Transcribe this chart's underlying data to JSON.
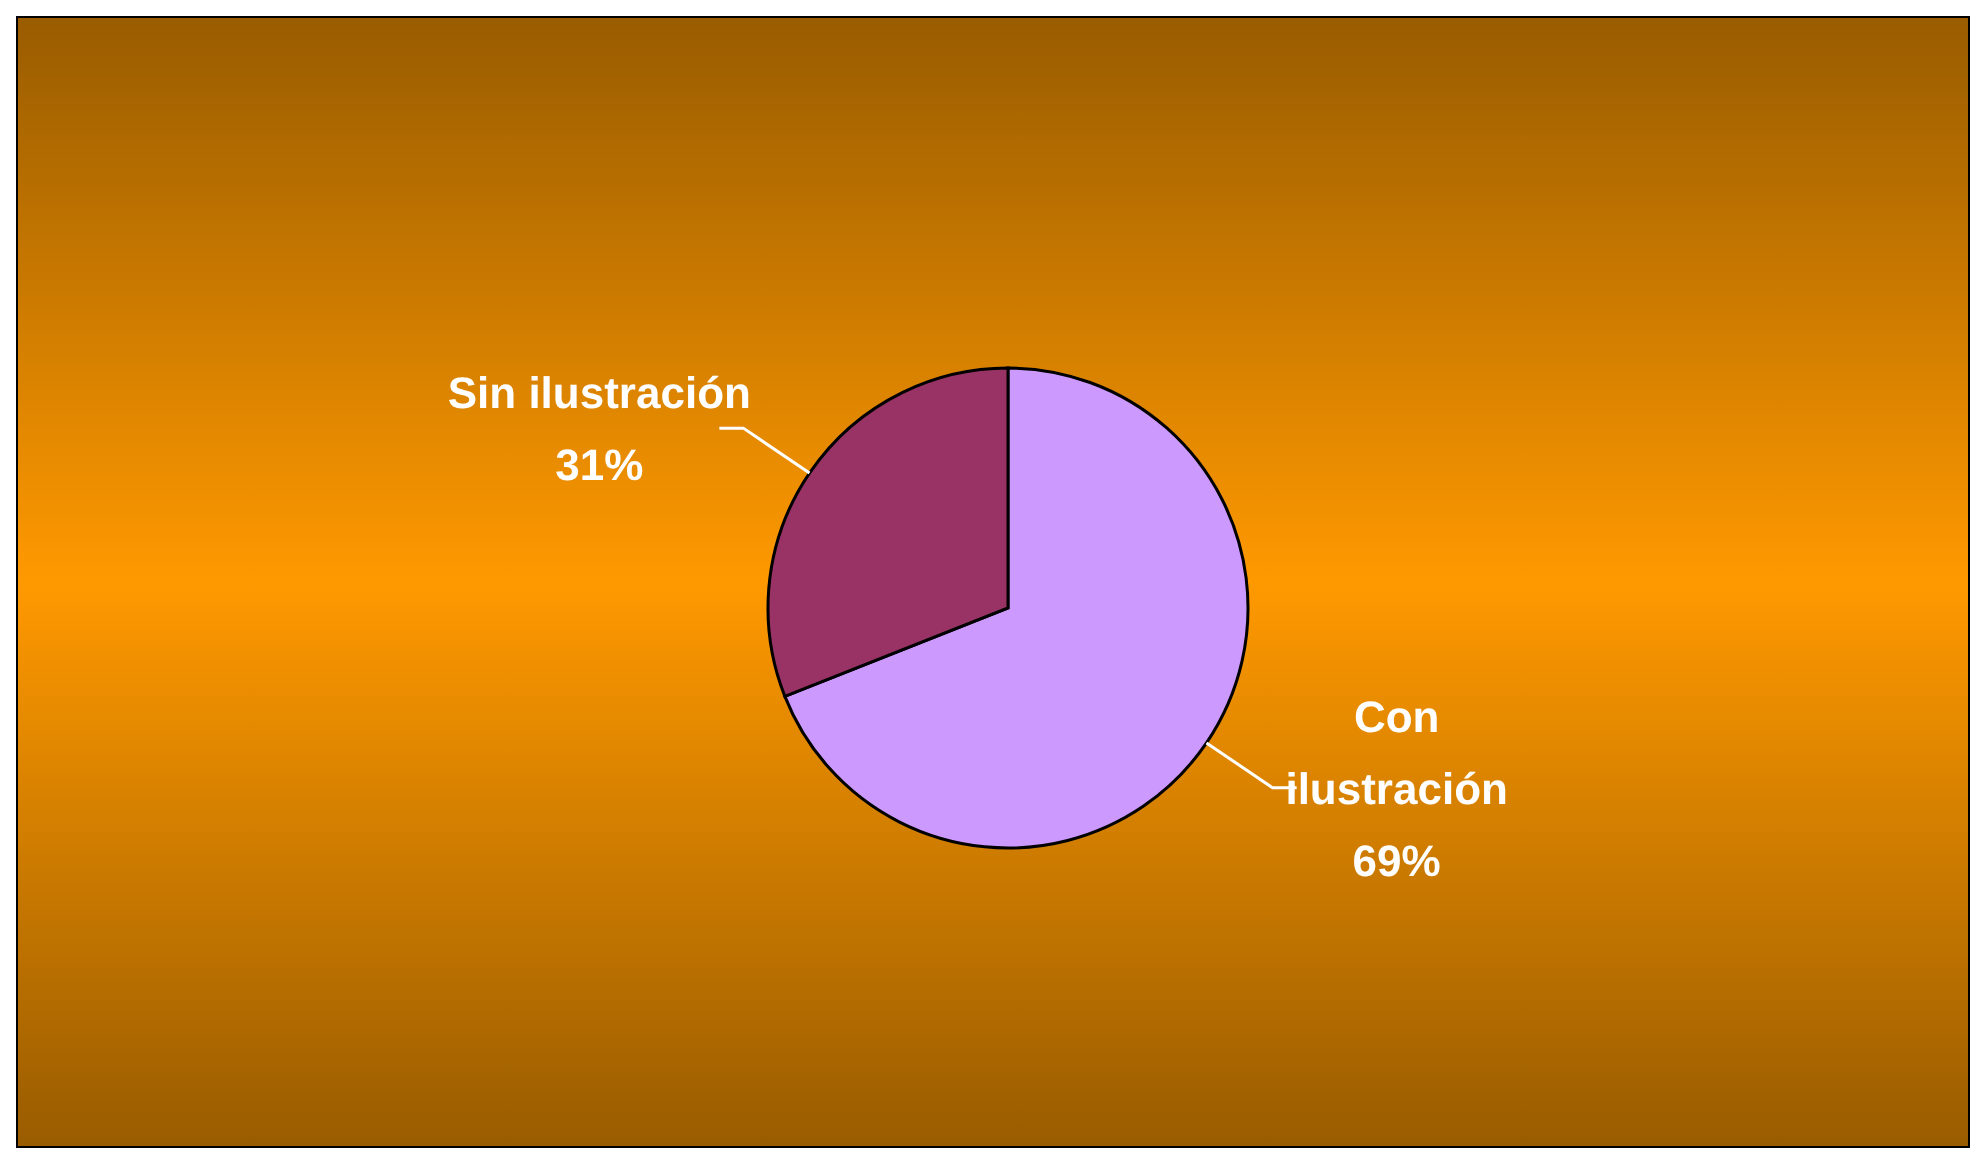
{
  "chart_data": {
    "type": "pie",
    "categories": [
      "Con ilustración",
      "Sin ilustración"
    ],
    "values": [
      69,
      31
    ],
    "colors": [
      "#cc99ff",
      "#993366"
    ],
    "value_labels": [
      "69%",
      "31%"
    ],
    "legend": false
  }
}
